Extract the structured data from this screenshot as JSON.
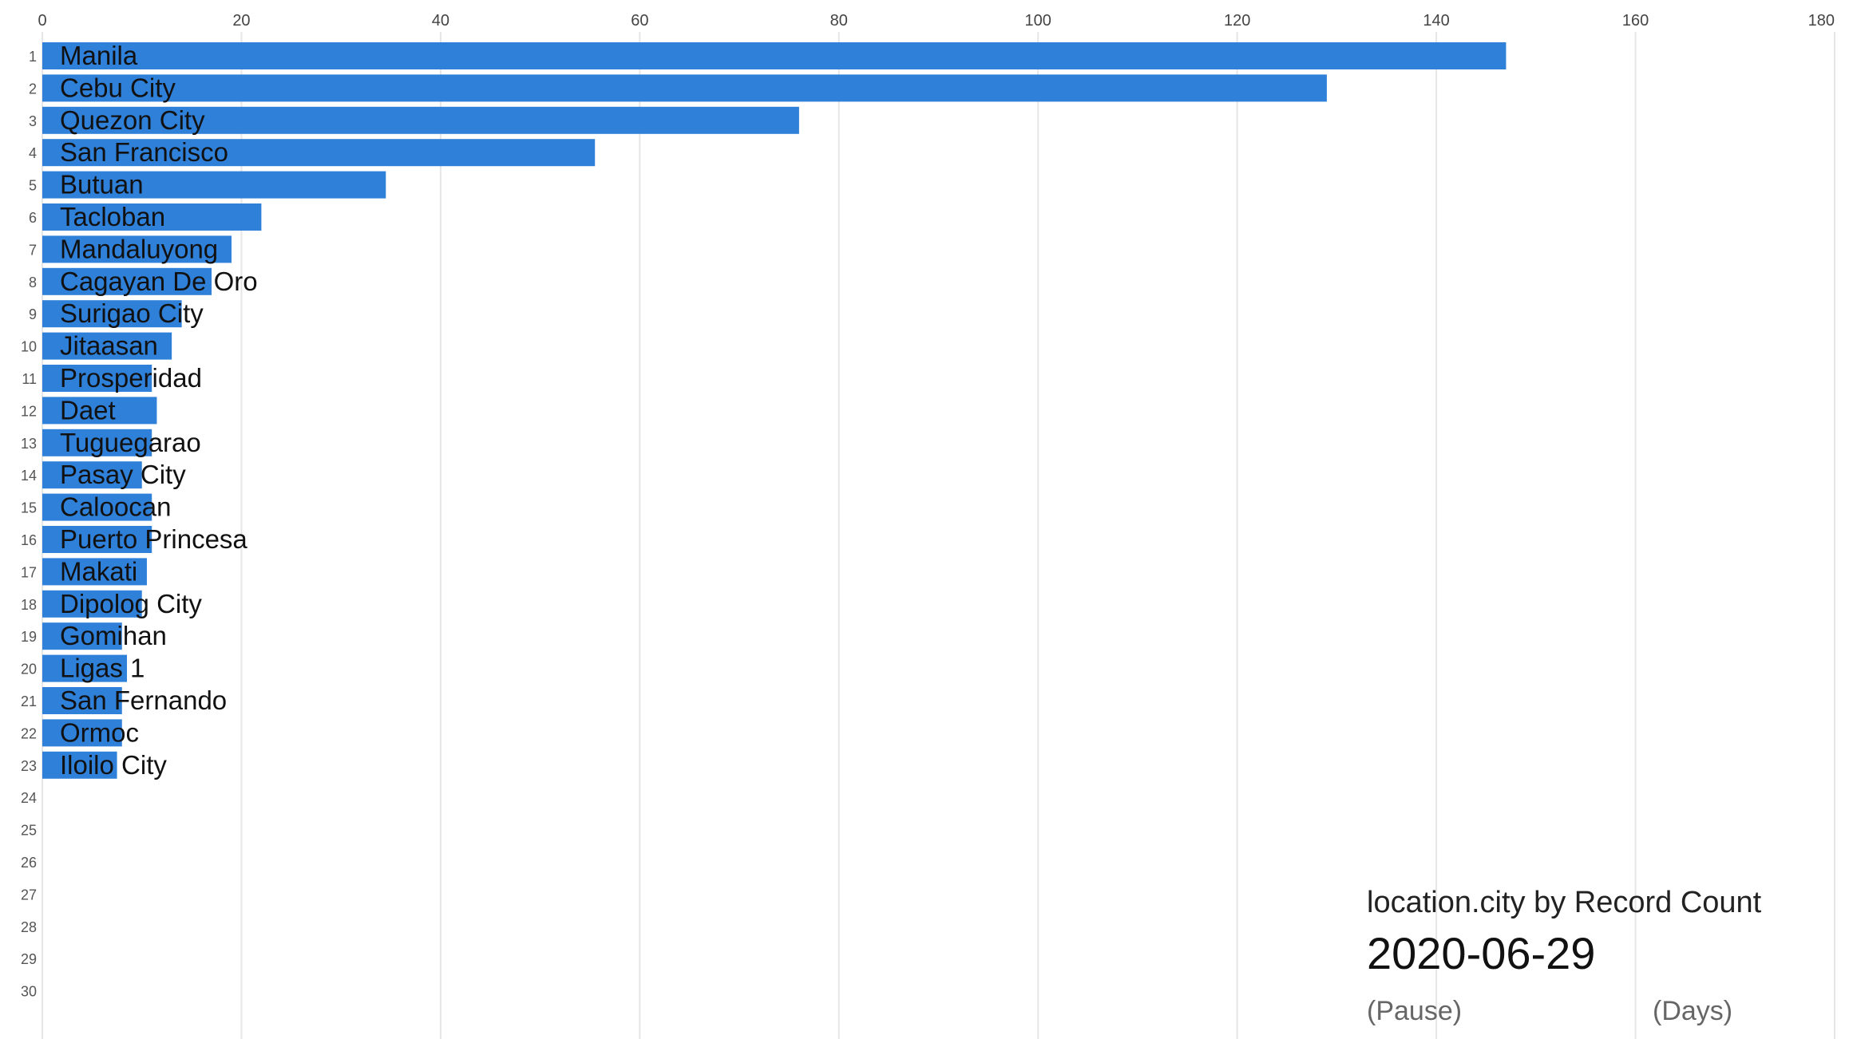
{
  "chart_data": {
    "type": "bar",
    "orientation": "horizontal",
    "title": "location.city by Record Count",
    "date": "2020-06-29",
    "x_ticks": [
      0,
      20,
      40,
      60,
      80,
      100,
      120,
      140,
      160,
      180
    ],
    "xlim": [
      0,
      180
    ],
    "ranks": [
      1,
      2,
      3,
      4,
      5,
      6,
      7,
      8,
      9,
      10,
      11,
      12,
      13,
      14,
      15,
      16,
      17,
      18,
      19,
      20,
      21,
      22,
      23,
      24,
      25,
      26,
      27,
      28,
      29,
      30
    ],
    "categories": [
      "Manila",
      "Cebu City",
      "Quezon City",
      "San Francisco",
      "Butuan",
      "Tacloban",
      "Mandaluyong",
      "Cagayan De Oro",
      "Surigao City",
      "Jitaasan",
      "Prosperidad",
      "Daet",
      "Tuguegarao",
      "Pasay City",
      "Caloocan",
      "Puerto Princesa",
      "Makati",
      "Dipolog City",
      "Gomihan",
      "Ligas 1",
      "San Fernando",
      "Ormoc",
      "Iloilo City"
    ],
    "values": [
      147,
      129,
      76,
      55.5,
      34.5,
      22,
      19,
      17,
      14,
      13,
      11,
      11.5,
      11,
      10,
      11,
      11,
      10.5,
      10,
      8,
      8.5,
      8,
      8,
      7.5
    ],
    "bar_color": "#2f80d9",
    "grid": true,
    "axis_position": "top"
  },
  "controls": {
    "pause_label": "(Pause)",
    "days_label": "(Days)"
  }
}
